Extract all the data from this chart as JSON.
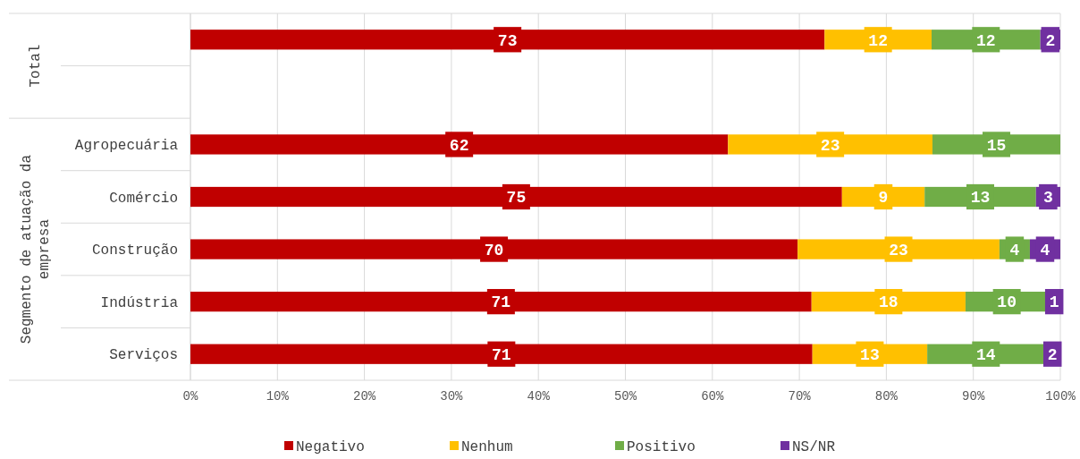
{
  "chart_data": {
    "type": "bar",
    "orientation": "horizontal",
    "stacked": true,
    "categories": [
      null,
      null,
      "Agropecuária",
      "Comércio",
      "Construção",
      "Indústria",
      "Serviços"
    ],
    "series": [
      {
        "name": "Negativo",
        "color": "#c00000",
        "values": [
          72.9,
          null,
          61.8,
          74.9,
          69.8,
          71.4,
          71.5
        ],
        "value_labels": [
          "73",
          null,
          "62",
          "75",
          "70",
          "71",
          "71"
        ]
      },
      {
        "name": "Nenhum",
        "color": "#ffc000",
        "values": [
          12.3,
          null,
          23.5,
          9.5,
          23.2,
          17.7,
          13.2
        ],
        "value_labels": [
          "12",
          null,
          "23",
          "9",
          "23",
          "18",
          "13"
        ]
      },
      {
        "name": "Positivo",
        "color": "#70ad47",
        "values": [
          12.5,
          null,
          14.7,
          12.8,
          3.5,
          9.5,
          13.5
        ],
        "value_labels": [
          "12",
          null,
          "15",
          "13",
          "4",
          "10",
          "14"
        ]
      },
      {
        "name": "NS/NR",
        "color": "#7030a0",
        "values": [
          2.3,
          null,
          null,
          2.8,
          3.5,
          1.4,
          1.8
        ],
        "value_labels": [
          "2",
          null,
          null,
          "3",
          "4",
          "1",
          "2"
        ]
      }
    ],
    "xlim": [
      0,
      100
    ],
    "xticks": [
      {
        "value": 0,
        "label": "0%"
      },
      {
        "value": 10,
        "label": "10%"
      },
      {
        "value": 20,
        "label": "20%"
      },
      {
        "value": 30,
        "label": "30%"
      },
      {
        "value": 40,
        "label": "40%"
      },
      {
        "value": 50,
        "label": "50%"
      },
      {
        "value": 60,
        "label": "60%"
      },
      {
        "value": 70,
        "label": "70%"
      },
      {
        "value": 80,
        "label": "80%"
      },
      {
        "value": 90,
        "label": "90%"
      },
      {
        "value": 100,
        "label": "100%"
      }
    ],
    "grid": "x",
    "legend": "bottom",
    "annotations": [
      "Total",
      "Segmento de atuação da empresa"
    ]
  }
}
